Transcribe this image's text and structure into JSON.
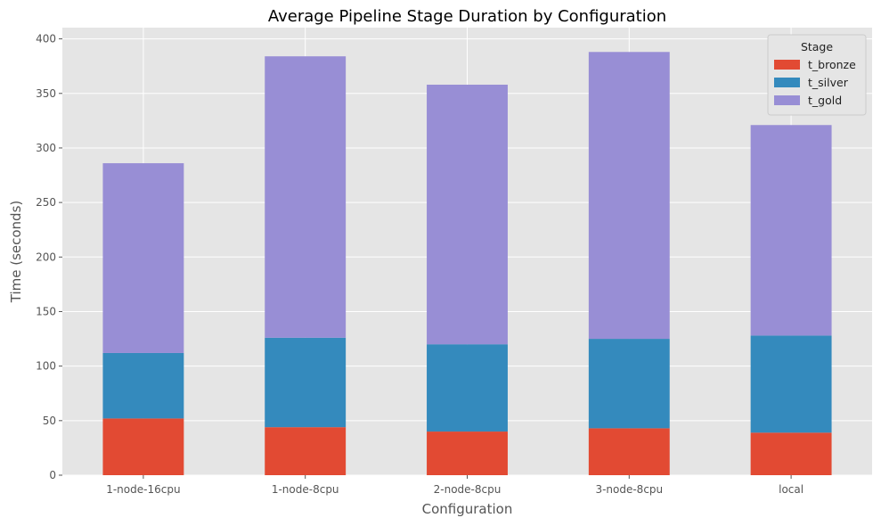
{
  "chart_data": {
    "type": "bar",
    "stacked": true,
    "title": "Average Pipeline Stage Duration by Configuration",
    "xlabel": "Configuration",
    "ylabel": "Time (seconds)",
    "ylim": [
      0,
      410
    ],
    "yticks": [
      0,
      50,
      100,
      150,
      200,
      250,
      300,
      350,
      400
    ],
    "categories": [
      "1-node-16cpu",
      "1-node-8cpu",
      "2-node-8cpu",
      "3-node-8cpu",
      "local"
    ],
    "series": [
      {
        "name": "t_bronze",
        "color": "#E24A33",
        "values": [
          52,
          44,
          40,
          43,
          39
        ]
      },
      {
        "name": "t_silver",
        "color": "#348ABD",
        "values": [
          60,
          82,
          80,
          82,
          89
        ]
      },
      {
        "name": "t_gold",
        "color": "#988ED5",
        "values": [
          174,
          258,
          238,
          263,
          193
        ]
      }
    ],
    "legend_title": "Stage",
    "legend_position": "top-right",
    "grid": true,
    "style": "ggplot"
  }
}
